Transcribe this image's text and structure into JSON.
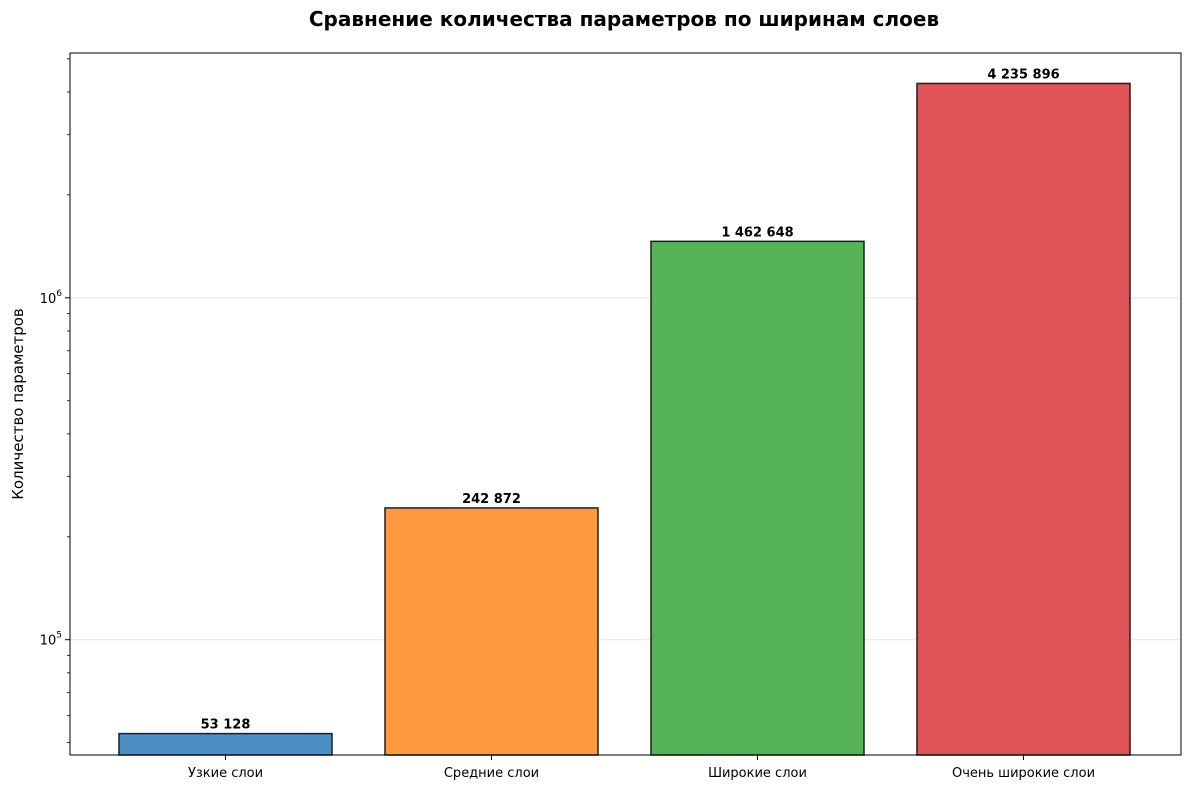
{
  "chart_data": {
    "type": "bar",
    "title": "Сравнение количества параметров по ширинам слоев",
    "xlabel": "",
    "ylabel": "Количество параметров",
    "yscale": "log",
    "ylim": [
      46000,
      5200000
    ],
    "categories": [
      "Узкие слои",
      "Средние слои",
      "Широкие слои",
      "Очень широкие слои"
    ],
    "values": [
      53128,
      242872,
      1462648,
      4235896
    ],
    "value_labels": [
      "53 128",
      "242 872",
      "1 462 648",
      "4 235 896"
    ],
    "colors": [
      "#4a90c4",
      "#ff9940",
      "#56b356",
      "#df5255"
    ],
    "y_major_ticks": [
      {
        "value": 100000,
        "base": "10",
        "exp": "5"
      },
      {
        "value": 1000000,
        "base": "10",
        "exp": "6"
      }
    ],
    "y_minor_ticks": [
      50000,
      60000,
      70000,
      80000,
      90000,
      200000,
      300000,
      400000,
      500000,
      600000,
      700000,
      800000,
      900000,
      2000000,
      3000000,
      4000000,
      5000000
    ],
    "grid": true,
    "grid_axis": "y"
  }
}
